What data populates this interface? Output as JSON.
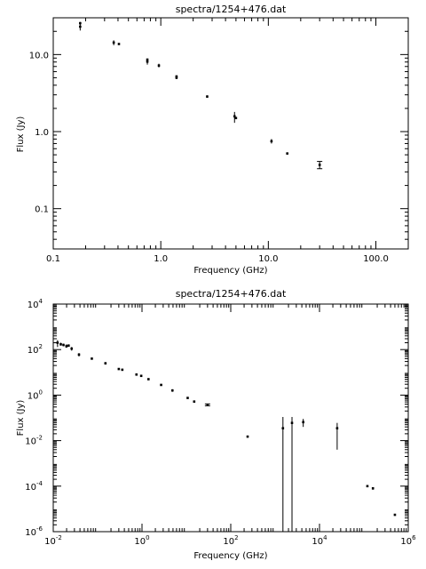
{
  "chart_data": [
    {
      "type": "scatter",
      "title": "spectra/1254+476.dat",
      "xlabel": "Frequency (GHz)",
      "ylabel": "Flux (Jy)",
      "xscale": "log",
      "yscale": "log",
      "xlim": [
        0.1,
        200
      ],
      "ylim": [
        0.03,
        30
      ],
      "xticks": [
        {
          "v": 0.1,
          "label": "0.1"
        },
        {
          "v": 1,
          "label": "1.0"
        },
        {
          "v": 10,
          "label": "10.0"
        },
        {
          "v": 100,
          "label": "100.0"
        }
      ],
      "yticks": [
        {
          "v": 0.1,
          "label": "0.1"
        },
        {
          "v": 1,
          "label": "1.0"
        },
        {
          "v": 10,
          "label": "10.0"
        }
      ],
      "grid": false,
      "points": [
        {
          "x": 0.178,
          "y": 23,
          "lo": 20.5,
          "hi": 26
        },
        {
          "x": 0.178,
          "y": 25.5,
          "lo": 24.5,
          "hi": 26.5
        },
        {
          "x": 0.365,
          "y": 14.3,
          "lo": 13.2,
          "hi": 15.3
        },
        {
          "x": 0.408,
          "y": 13.7,
          "lo": 13.7,
          "hi": 13.7
        },
        {
          "x": 0.75,
          "y": 8.1,
          "lo": 7.4,
          "hi": 8.7
        },
        {
          "x": 0.75,
          "y": 8.6,
          "lo": 8.4,
          "hi": 8.8
        },
        {
          "x": 0.96,
          "y": 7.2,
          "lo": 6.8,
          "hi": 7.6
        },
        {
          "x": 1.4,
          "y": 5.0,
          "lo": 4.8,
          "hi": 5.2
        },
        {
          "x": 1.4,
          "y": 5.2,
          "lo": 5.1,
          "hi": 5.3
        },
        {
          "x": 2.7,
          "y": 2.85,
          "lo": 2.75,
          "hi": 2.95
        },
        {
          "x": 4.85,
          "y": 1.58,
          "lo": 1.3,
          "hi": 1.8
        },
        {
          "x": 5.0,
          "y": 1.5,
          "lo": 1.45,
          "hi": 1.55
        },
        {
          "x": 10.7,
          "y": 0.75,
          "lo": 0.7,
          "hi": 0.8
        },
        {
          "x": 15.0,
          "y": 0.52,
          "lo": 0.52,
          "hi": 0.52
        },
        {
          "x": 30.0,
          "y": 0.37,
          "lo": 0.33,
          "hi": 0.41,
          "cap": true
        }
      ]
    },
    {
      "type": "scatter",
      "title": "spectra/1254+476.dat",
      "xlabel": "Frequency (GHz)",
      "ylabel": "Flux (Jy)",
      "xscale": "log",
      "yscale": "log",
      "xlim": [
        0.01,
        1000000
      ],
      "ylim": [
        1e-06,
        10000
      ],
      "xticks": [
        {
          "v": 0.01,
          "base": "10",
          "exp": "-2"
        },
        {
          "v": 1,
          "base": "10",
          "exp": "0"
        },
        {
          "v": 100,
          "base": "10",
          "exp": "2"
        },
        {
          "v": 10000,
          "base": "10",
          "exp": "4"
        },
        {
          "v": 1000000,
          "base": "10",
          "exp": "6"
        }
      ],
      "yticks": [
        {
          "v": 1e-06,
          "base": "10",
          "exp": "-6"
        },
        {
          "v": 0.0001,
          "base": "10",
          "exp": "-4"
        },
        {
          "v": 0.01,
          "base": "10",
          "exp": "-2"
        },
        {
          "v": 1,
          "base": "10",
          "exp": "0"
        },
        {
          "v": 100,
          "base": "10",
          "exp": "2"
        },
        {
          "v": 10000,
          "base": "10",
          "exp": "4"
        }
      ],
      "grid": false,
      "points": [
        {
          "x": 0.0125,
          "y": 200,
          "lo": 130,
          "hi": 260
        },
        {
          "x": 0.0148,
          "y": 170,
          "lo": 150,
          "hi": 200
        },
        {
          "x": 0.017,
          "y": 160,
          "lo": 140,
          "hi": 180
        },
        {
          "x": 0.0198,
          "y": 140,
          "lo": 120,
          "hi": 170
        },
        {
          "x": 0.0222,
          "y": 150,
          "lo": 140,
          "hi": 160
        },
        {
          "x": 0.026,
          "y": 110,
          "lo": 90,
          "hi": 130
        },
        {
          "x": 0.038,
          "y": 60,
          "lo": 50,
          "hi": 70
        },
        {
          "x": 0.074,
          "y": 40,
          "lo": 40,
          "hi": 40
        },
        {
          "x": 0.15,
          "y": 25,
          "lo": 22,
          "hi": 28
        },
        {
          "x": 0.3,
          "y": 14,
          "lo": 13,
          "hi": 15
        },
        {
          "x": 0.36,
          "y": 13,
          "lo": 13,
          "hi": 13
        },
        {
          "x": 0.75,
          "y": 8,
          "lo": 7.4,
          "hi": 8.7
        },
        {
          "x": 0.96,
          "y": 7,
          "lo": 6.6,
          "hi": 7.4
        },
        {
          "x": 1.4,
          "y": 5,
          "lo": 4.7,
          "hi": 5.3
        },
        {
          "x": 2.7,
          "y": 2.8,
          "lo": 2.7,
          "hi": 2.9
        },
        {
          "x": 4.85,
          "y": 1.6,
          "lo": 1.4,
          "hi": 1.8
        },
        {
          "x": 10.7,
          "y": 0.75,
          "lo": 0.7,
          "hi": 0.8
        },
        {
          "x": 15,
          "y": 0.52,
          "lo": 0.52,
          "hi": 0.52
        },
        {
          "x": 30,
          "y": 0.37,
          "lo": 0.34,
          "hi": 0.41,
          "cap": true
        },
        {
          "x": 240,
          "y": 0.015,
          "lo": 0.015,
          "hi": 0.015
        },
        {
          "x": 1500,
          "y": 0.035,
          "lo": 1e-06,
          "hi": 0.11
        },
        {
          "x": 2400,
          "y": 0.06,
          "lo": 1e-06,
          "hi": 0.11
        },
        {
          "x": 4300,
          "y": 0.065,
          "lo": 0.04,
          "hi": 0.09
        },
        {
          "x": 25000,
          "y": 0.035,
          "lo": 0.004,
          "hi": 0.06
        },
        {
          "x": 120000,
          "y": 0.0001,
          "lo": 9e-05,
          "hi": 0.00011
        },
        {
          "x": 160000,
          "y": 8e-05,
          "lo": 7e-05,
          "hi": 9e-05
        },
        {
          "x": 500000,
          "y": 5.5e-06,
          "lo": 5.5e-06,
          "hi": 5.5e-06
        }
      ]
    }
  ]
}
